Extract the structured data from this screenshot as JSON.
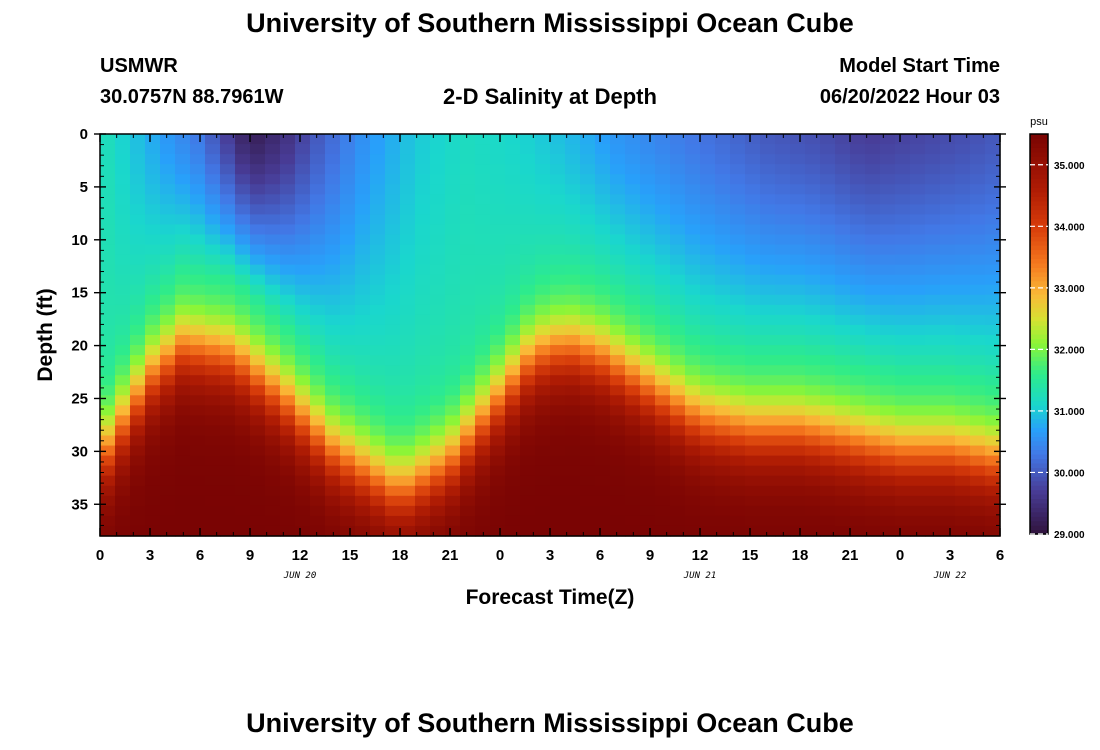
{
  "header": {
    "title": "University of Southern Mississippi Ocean Cube",
    "station": "USMWR",
    "location": "30.0757N  88.7961W",
    "subtitle": "2-D Salinity at Depth",
    "model_label": "Model Start Time",
    "model_time": "06/20/2022 Hour 03"
  },
  "footer": {
    "title": "University of Southern Mississippi Ocean Cube"
  },
  "chart_data": {
    "type": "heatmap",
    "title": "2-D Salinity at Depth",
    "xlabel": "Forecast Time(Z)",
    "ylabel": "Depth (ft)",
    "x_range_hours": [
      0,
      54
    ],
    "ylim": [
      0,
      38
    ],
    "x_tick_labels": [
      "0",
      "3",
      "6",
      "9",
      "12",
      "15",
      "18",
      "21",
      "0",
      "3",
      "6",
      "9",
      "12",
      "15",
      "18",
      "21",
      "0",
      "3",
      "6"
    ],
    "y_ticks": [
      0,
      5,
      10,
      15,
      20,
      25,
      30,
      35
    ],
    "y_tick_labels": [
      "0",
      "5",
      "10",
      "15",
      "20",
      "25",
      "30",
      "35"
    ],
    "date_labels": [
      {
        "hour": 12,
        "label": "JUN 20"
      },
      {
        "hour": 36,
        "label": "JUN 21"
      },
      {
        "hour": 51,
        "label": "JUN 22"
      }
    ],
    "colorbar": {
      "units": "psu",
      "min": 29.0,
      "max": 35.5,
      "ticks": [
        29.0,
        30.0,
        31.0,
        32.0,
        33.0,
        34.0,
        35.0
      ],
      "tick_labels": [
        "29.000",
        "30.000",
        "31.000",
        "32.000",
        "33.000",
        "34.000",
        "35.000"
      ]
    },
    "halocline_depth_ft": {
      "hours": [
        0,
        3,
        5,
        8,
        11,
        14,
        18,
        21,
        24,
        26,
        28,
        30,
        33,
        36,
        39,
        42,
        45,
        48,
        51,
        54
      ],
      "values": [
        31,
        23,
        20,
        21,
        25,
        30,
        34,
        31,
        25,
        21,
        20,
        21,
        24,
        27,
        28,
        28,
        29,
        30,
        30,
        31
      ]
    },
    "surface_salinity_psu": {
      "hours": [
        0,
        3,
        6,
        8,
        9,
        11,
        13,
        16,
        19,
        22,
        25,
        28,
        31,
        34,
        37,
        40,
        43,
        46,
        49,
        52,
        54
      ],
      "values": [
        31.3,
        30.8,
        30.3,
        29.6,
        29.2,
        29.5,
        30.0,
        30.6,
        31.0,
        31.2,
        31.1,
        30.9,
        30.6,
        30.4,
        30.2,
        30.0,
        29.9,
        29.7,
        29.8,
        29.9,
        30.0
      ]
    },
    "bottom_salinity_psu": 35.5
  }
}
